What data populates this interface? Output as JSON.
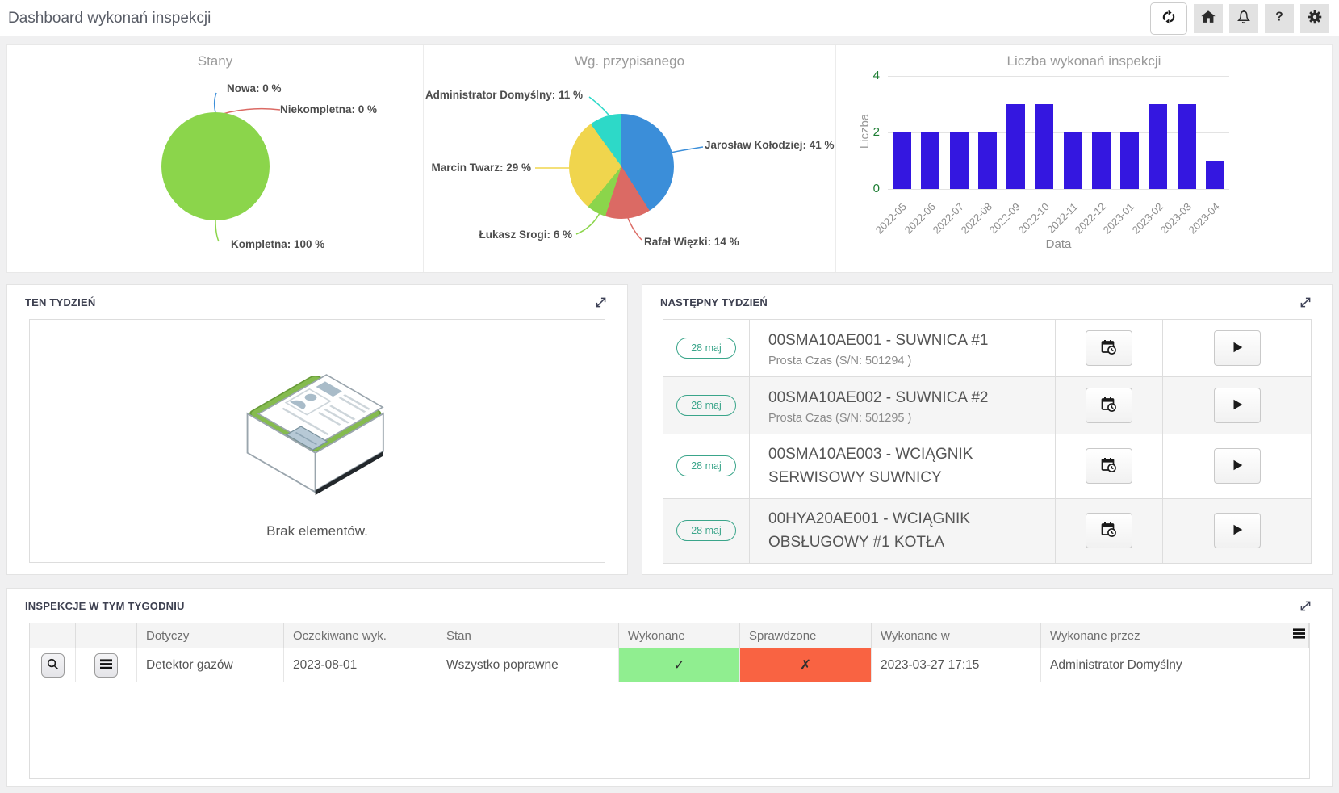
{
  "page_title": "Dashboard wykonań inspekcji",
  "header": {
    "buttons": [
      "refresh",
      "home",
      "notifications",
      "help",
      "settings"
    ]
  },
  "chart_data": [
    {
      "type": "pie",
      "title": "Stany",
      "labels": [
        "Nowa",
        "Niekompletna",
        "Kompletna"
      ],
      "values": [
        0,
        0,
        100
      ],
      "label_texts": [
        "Nowa: 0 %",
        "Niekompletna: 0 %",
        "Kompletna: 100 %"
      ],
      "colors": [
        "#3b8ed9",
        "#db6a64",
        "#8bd54b"
      ],
      "legend_position": "outside-callouts"
    },
    {
      "type": "pie",
      "title": "Wg. przypisanego",
      "labels": [
        "Jarosław Kołodziej",
        "Rafał Więzki",
        "Łukasz Srogi",
        "Marcin Twarz",
        "Administrator Domyślny"
      ],
      "values": [
        41,
        14,
        6,
        29,
        11
      ],
      "label_texts": [
        "Jarosław Kołodziej: 41 %",
        "Rafał Więzki: 14 %",
        "Łukasz Srogi: 6 %",
        "Marcin Twarz: 29 %",
        "Administrator Domyślny: 11 %"
      ],
      "colors": [
        "#3b8ed9",
        "#db6a64",
        "#8bd54b",
        "#f0d54d",
        "#2dd9c8"
      ],
      "legend_position": "outside-callouts"
    },
    {
      "type": "bar",
      "title": "Liczba wykonań inspekcji",
      "categories": [
        "2022-05",
        "2022-06",
        "2022-07",
        "2022-08",
        "2022-09",
        "2022-10",
        "2022-11",
        "2022-12",
        "2023-01",
        "2023-02",
        "2023-03",
        "2023-04"
      ],
      "values": [
        2,
        2,
        2,
        2,
        3,
        3,
        2,
        2,
        2,
        3,
        3,
        1
      ],
      "xlabel": "Data",
      "ylabel": "Liczba",
      "yticks": [
        0,
        2,
        4
      ],
      "ylim": [
        0,
        4
      ],
      "grid": true,
      "bar_color": "#3417e0",
      "tick_color": "#1e7e34"
    }
  ],
  "panels": {
    "this_week": {
      "title": "TEN TYDZIEŃ",
      "empty_text": "Brak elementów."
    },
    "next_week": {
      "title": "NASTĘPNY TYDZIEŃ",
      "rows": [
        {
          "date": "28 maj",
          "title": "00SMA10AE001 - SUWNICA #1",
          "subtitle": "Prosta Czas (S/N: 501294 )"
        },
        {
          "date": "28 maj",
          "title": "00SMA10AE002 - SUWNICA #2",
          "subtitle": "Prosta Czas (S/N: 501295 )"
        },
        {
          "date": "28 maj",
          "title": "00SMA10AE003 - WCIĄGNIK SERWISOWY SUWNICY",
          "subtitle": ""
        },
        {
          "date": "28 maj",
          "title": "00HYA20AE001 - WCIĄGNIK OBSŁUGOWY #1 KOTŁA",
          "subtitle": ""
        }
      ]
    },
    "inspections": {
      "title": "INSPEKCJE W TYM TYGODNIU",
      "columns": [
        "",
        "",
        "Dotyczy",
        "Oczekiwane wyk.",
        "Stan",
        "Wykonane",
        "Sprawdzone",
        "Wykonane w",
        "Wykonane przez"
      ],
      "rows": [
        {
          "dotyczy": "Detektor gazów",
          "oczekiwane_wyk": "2023-08-01",
          "stan": "Wszystko poprawne",
          "wykonane": true,
          "sprawdzone": false,
          "wykonane_w": "2023-03-27 17:15",
          "wykonane_przez": "Administrator Domyślny"
        }
      ],
      "status_colors": {
        "ok_bg": "#90ee90",
        "fail_bg": "#f96342",
        "ok_glyph": "✓",
        "fail_glyph": "✗"
      }
    }
  }
}
